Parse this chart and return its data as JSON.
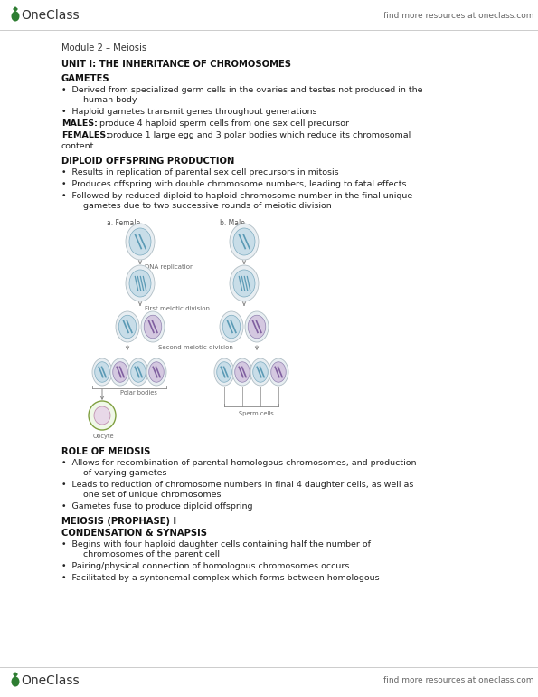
{
  "bg_color": "#ffffff",
  "logo_color": "#2e7d32",
  "header_text": "find more resources at oneclass.com",
  "footer_text": "find more resources at oneclass.com",
  "logo_text": "OneClass",
  "module_title": "Module 2 – Meiosis",
  "section1_title": "UNIT I: THE INHERITANCE OF CHROMOSOMES",
  "section2_title": "GAMETES",
  "section2_b1": "•  Derived from specialized germ cells in the ovaries and testes not produced in the\n        human body",
  "section2_b2": "•  Haploid gametes transmit genes throughout generations",
  "section2_males": "MALES: produce 4 haploid sperm cells from one sex cell precursor",
  "section2_females_bold": "FEMALES: ",
  "section2_females_rest": " produce 1 large egg and 3 polar bodies which reduce its chromosomal\ncontent",
  "section3_title": "DIPLOID OFFSPRING PRODUCTION",
  "section3_b1": "•  Results in replication of parental sex cell precursors in mitosis",
  "section3_b2": "•  Produces offspring with double chromosome numbers, leading to fatal effects",
  "section3_b3": "•  Followed by reduced diploid to haploid chromosome number in the final unique\n        gametes due to two successive rounds of meiotic division",
  "section4_title": "ROLE OF MEIOSIS",
  "section4_b1": "•  Allows for recombination of parental homologous chromosomes, and production\n        of varying gametes",
  "section4_b2": "•  Leads to reduction of chromosome numbers in final 4 daughter cells, as well as\n        one set of unique chromosomes",
  "section4_b3": "•  Gametes fuse to produce diploid offspring",
  "section5_title": "MEIOSIS (PROPHASE) I",
  "section5_subtitle": "CONDENSATION & SYNAPSIS",
  "section5_b1": "•  Begins with four haploid daughter cells containing half the number of\n        chromosomes of the parent cell",
  "section5_b2": "•  Pairing/physical connection of homologous chromosomes occurs",
  "section5_b3": "•  Facilitated by a syntonemal complex which forms between homologous",
  "diag_female_label": "a. Female",
  "diag_male_label": "b. Male",
  "diag_dna_label": "DNA replication",
  "diag_first_label": "First meiotic division",
  "diag_second_label": "Second meiotic division",
  "diag_polar_label": "Polar bodies",
  "diag_oocyte_label": "Oocyte",
  "diag_sperm_label": "Sperm cells"
}
